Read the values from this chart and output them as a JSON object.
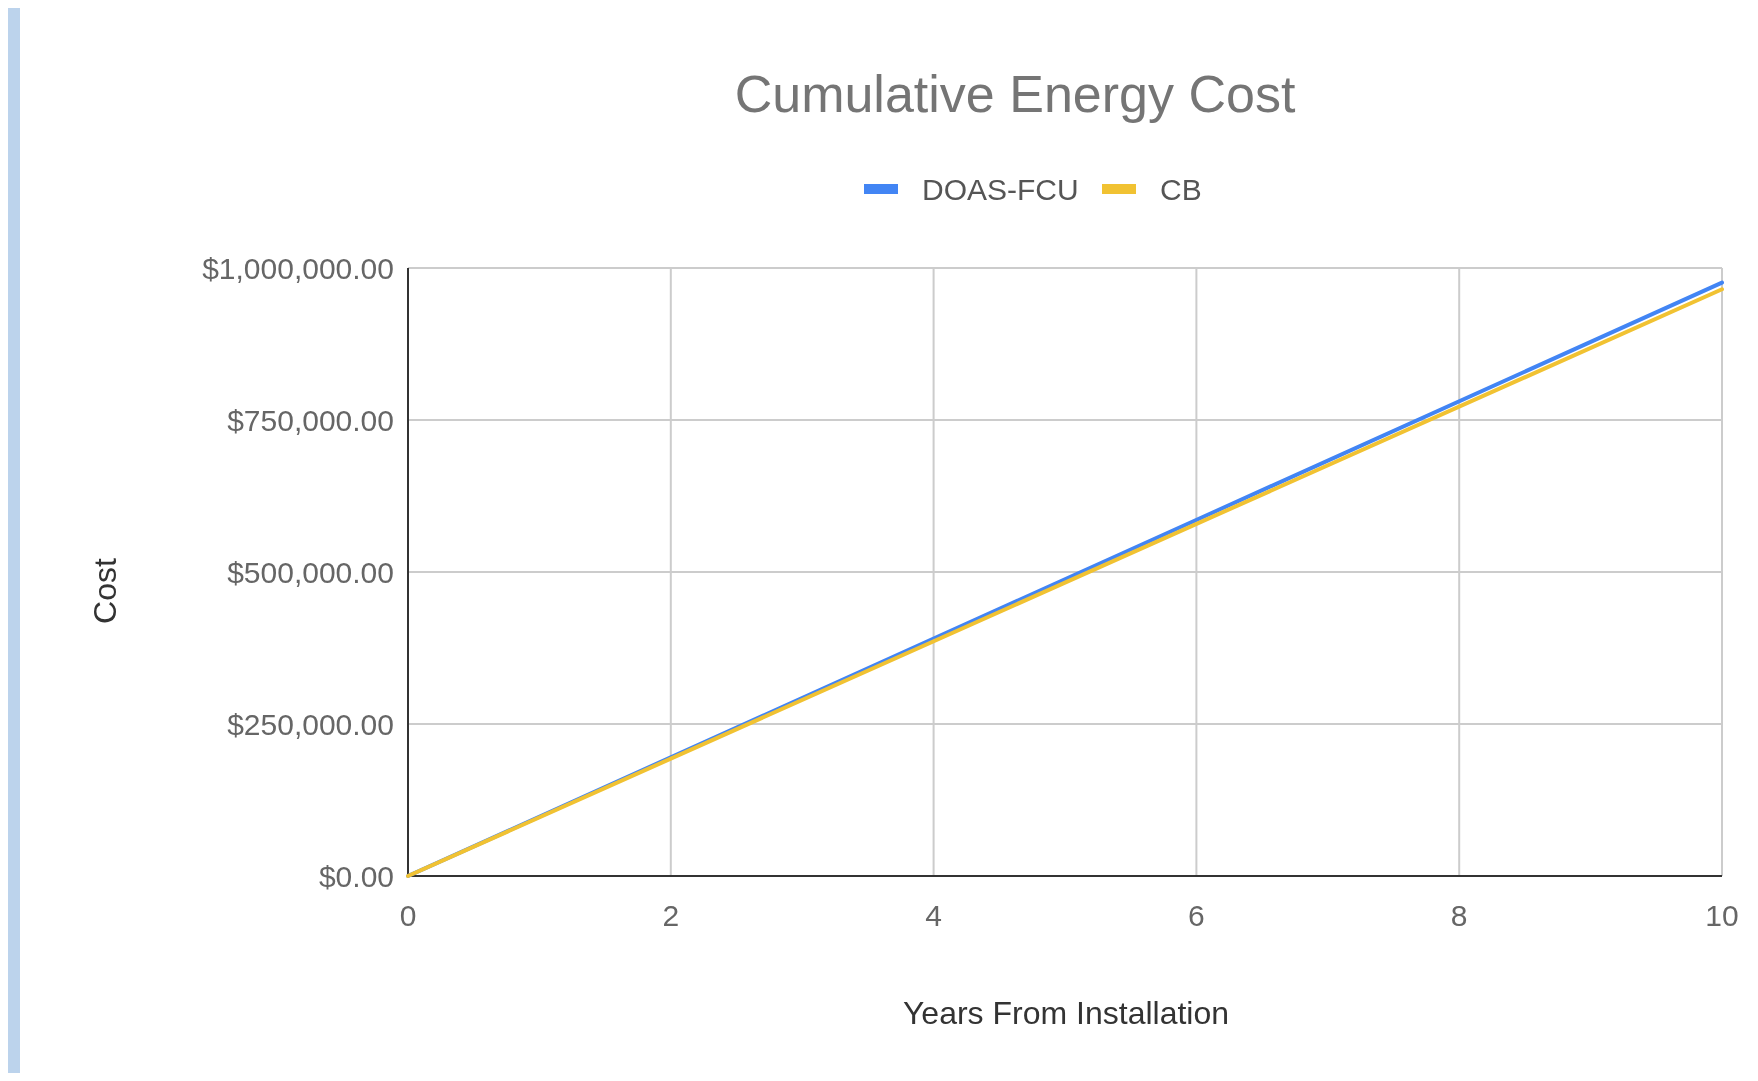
{
  "chart_data": {
    "type": "line",
    "title": "Cumulative Energy Cost",
    "xlabel": "Years From Installation",
    "ylabel": "Cost",
    "x": [
      0,
      10
    ],
    "series": [
      {
        "name": "DOAS-FCU",
        "color": "#4285f4",
        "values": [
          0,
          976000
        ]
      },
      {
        "name": "CB",
        "color": "#f1c232",
        "values": [
          0,
          965000
        ]
      }
    ],
    "xlim": [
      0,
      10
    ],
    "xticks": [
      0,
      2,
      4,
      6,
      8,
      10
    ],
    "ylim": [
      0,
      1000000
    ],
    "yticks": [
      {
        "value": 0,
        "label": "$0.00"
      },
      {
        "value": 250000,
        "label": "$250,000.00"
      },
      {
        "value": 500000,
        "label": "$500,000.00"
      },
      {
        "value": 750000,
        "label": "$750,000.00"
      },
      {
        "value": 1000000,
        "label": "$1,000,000.00"
      }
    ],
    "grid": true,
    "legend": "top",
    "marker": "none",
    "line_style": "solid"
  }
}
